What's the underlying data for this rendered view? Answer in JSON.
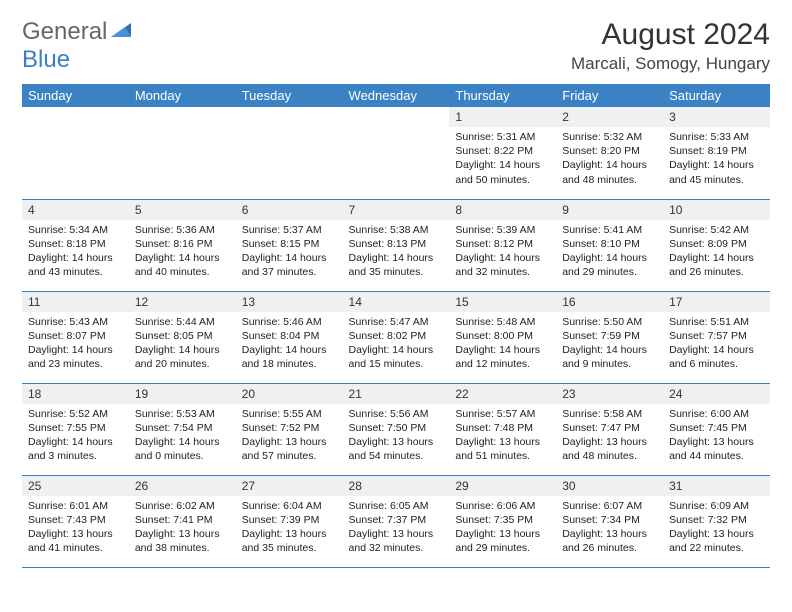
{
  "logo": {
    "part1": "General",
    "part2": "Blue"
  },
  "title": "August 2024",
  "location": "Marcali, Somogy, Hungary",
  "colors": {
    "header_bg": "#3a82c4",
    "header_text": "#ffffff",
    "daynum_bg": "#eef0f2",
    "border": "#3a82c4",
    "logo_gray": "#666666",
    "logo_blue": "#3a7fc4"
  },
  "weekdays": [
    "Sunday",
    "Monday",
    "Tuesday",
    "Wednesday",
    "Thursday",
    "Friday",
    "Saturday"
  ],
  "weeks": [
    [
      {
        "empty": true
      },
      {
        "empty": true
      },
      {
        "empty": true
      },
      {
        "empty": true
      },
      {
        "day": "1",
        "sunrise": "Sunrise: 5:31 AM",
        "sunset": "Sunset: 8:22 PM",
        "daylight": "Daylight: 14 hours and 50 minutes."
      },
      {
        "day": "2",
        "sunrise": "Sunrise: 5:32 AM",
        "sunset": "Sunset: 8:20 PM",
        "daylight": "Daylight: 14 hours and 48 minutes."
      },
      {
        "day": "3",
        "sunrise": "Sunrise: 5:33 AM",
        "sunset": "Sunset: 8:19 PM",
        "daylight": "Daylight: 14 hours and 45 minutes."
      }
    ],
    [
      {
        "day": "4",
        "sunrise": "Sunrise: 5:34 AM",
        "sunset": "Sunset: 8:18 PM",
        "daylight": "Daylight: 14 hours and 43 minutes."
      },
      {
        "day": "5",
        "sunrise": "Sunrise: 5:36 AM",
        "sunset": "Sunset: 8:16 PM",
        "daylight": "Daylight: 14 hours and 40 minutes."
      },
      {
        "day": "6",
        "sunrise": "Sunrise: 5:37 AM",
        "sunset": "Sunset: 8:15 PM",
        "daylight": "Daylight: 14 hours and 37 minutes."
      },
      {
        "day": "7",
        "sunrise": "Sunrise: 5:38 AM",
        "sunset": "Sunset: 8:13 PM",
        "daylight": "Daylight: 14 hours and 35 minutes."
      },
      {
        "day": "8",
        "sunrise": "Sunrise: 5:39 AM",
        "sunset": "Sunset: 8:12 PM",
        "daylight": "Daylight: 14 hours and 32 minutes."
      },
      {
        "day": "9",
        "sunrise": "Sunrise: 5:41 AM",
        "sunset": "Sunset: 8:10 PM",
        "daylight": "Daylight: 14 hours and 29 minutes."
      },
      {
        "day": "10",
        "sunrise": "Sunrise: 5:42 AM",
        "sunset": "Sunset: 8:09 PM",
        "daylight": "Daylight: 14 hours and 26 minutes."
      }
    ],
    [
      {
        "day": "11",
        "sunrise": "Sunrise: 5:43 AM",
        "sunset": "Sunset: 8:07 PM",
        "daylight": "Daylight: 14 hours and 23 minutes."
      },
      {
        "day": "12",
        "sunrise": "Sunrise: 5:44 AM",
        "sunset": "Sunset: 8:05 PM",
        "daylight": "Daylight: 14 hours and 20 minutes."
      },
      {
        "day": "13",
        "sunrise": "Sunrise: 5:46 AM",
        "sunset": "Sunset: 8:04 PM",
        "daylight": "Daylight: 14 hours and 18 minutes."
      },
      {
        "day": "14",
        "sunrise": "Sunrise: 5:47 AM",
        "sunset": "Sunset: 8:02 PM",
        "daylight": "Daylight: 14 hours and 15 minutes."
      },
      {
        "day": "15",
        "sunrise": "Sunrise: 5:48 AM",
        "sunset": "Sunset: 8:00 PM",
        "daylight": "Daylight: 14 hours and 12 minutes."
      },
      {
        "day": "16",
        "sunrise": "Sunrise: 5:50 AM",
        "sunset": "Sunset: 7:59 PM",
        "daylight": "Daylight: 14 hours and 9 minutes."
      },
      {
        "day": "17",
        "sunrise": "Sunrise: 5:51 AM",
        "sunset": "Sunset: 7:57 PM",
        "daylight": "Daylight: 14 hours and 6 minutes."
      }
    ],
    [
      {
        "day": "18",
        "sunrise": "Sunrise: 5:52 AM",
        "sunset": "Sunset: 7:55 PM",
        "daylight": "Daylight: 14 hours and 3 minutes."
      },
      {
        "day": "19",
        "sunrise": "Sunrise: 5:53 AM",
        "sunset": "Sunset: 7:54 PM",
        "daylight": "Daylight: 14 hours and 0 minutes."
      },
      {
        "day": "20",
        "sunrise": "Sunrise: 5:55 AM",
        "sunset": "Sunset: 7:52 PM",
        "daylight": "Daylight: 13 hours and 57 minutes."
      },
      {
        "day": "21",
        "sunrise": "Sunrise: 5:56 AM",
        "sunset": "Sunset: 7:50 PM",
        "daylight": "Daylight: 13 hours and 54 minutes."
      },
      {
        "day": "22",
        "sunrise": "Sunrise: 5:57 AM",
        "sunset": "Sunset: 7:48 PM",
        "daylight": "Daylight: 13 hours and 51 minutes."
      },
      {
        "day": "23",
        "sunrise": "Sunrise: 5:58 AM",
        "sunset": "Sunset: 7:47 PM",
        "daylight": "Daylight: 13 hours and 48 minutes."
      },
      {
        "day": "24",
        "sunrise": "Sunrise: 6:00 AM",
        "sunset": "Sunset: 7:45 PM",
        "daylight": "Daylight: 13 hours and 44 minutes."
      }
    ],
    [
      {
        "day": "25",
        "sunrise": "Sunrise: 6:01 AM",
        "sunset": "Sunset: 7:43 PM",
        "daylight": "Daylight: 13 hours and 41 minutes."
      },
      {
        "day": "26",
        "sunrise": "Sunrise: 6:02 AM",
        "sunset": "Sunset: 7:41 PM",
        "daylight": "Daylight: 13 hours and 38 minutes."
      },
      {
        "day": "27",
        "sunrise": "Sunrise: 6:04 AM",
        "sunset": "Sunset: 7:39 PM",
        "daylight": "Daylight: 13 hours and 35 minutes."
      },
      {
        "day": "28",
        "sunrise": "Sunrise: 6:05 AM",
        "sunset": "Sunset: 7:37 PM",
        "daylight": "Daylight: 13 hours and 32 minutes."
      },
      {
        "day": "29",
        "sunrise": "Sunrise: 6:06 AM",
        "sunset": "Sunset: 7:35 PM",
        "daylight": "Daylight: 13 hours and 29 minutes."
      },
      {
        "day": "30",
        "sunrise": "Sunrise: 6:07 AM",
        "sunset": "Sunset: 7:34 PM",
        "daylight": "Daylight: 13 hours and 26 minutes."
      },
      {
        "day": "31",
        "sunrise": "Sunrise: 6:09 AM",
        "sunset": "Sunset: 7:32 PM",
        "daylight": "Daylight: 13 hours and 22 minutes."
      }
    ]
  ]
}
